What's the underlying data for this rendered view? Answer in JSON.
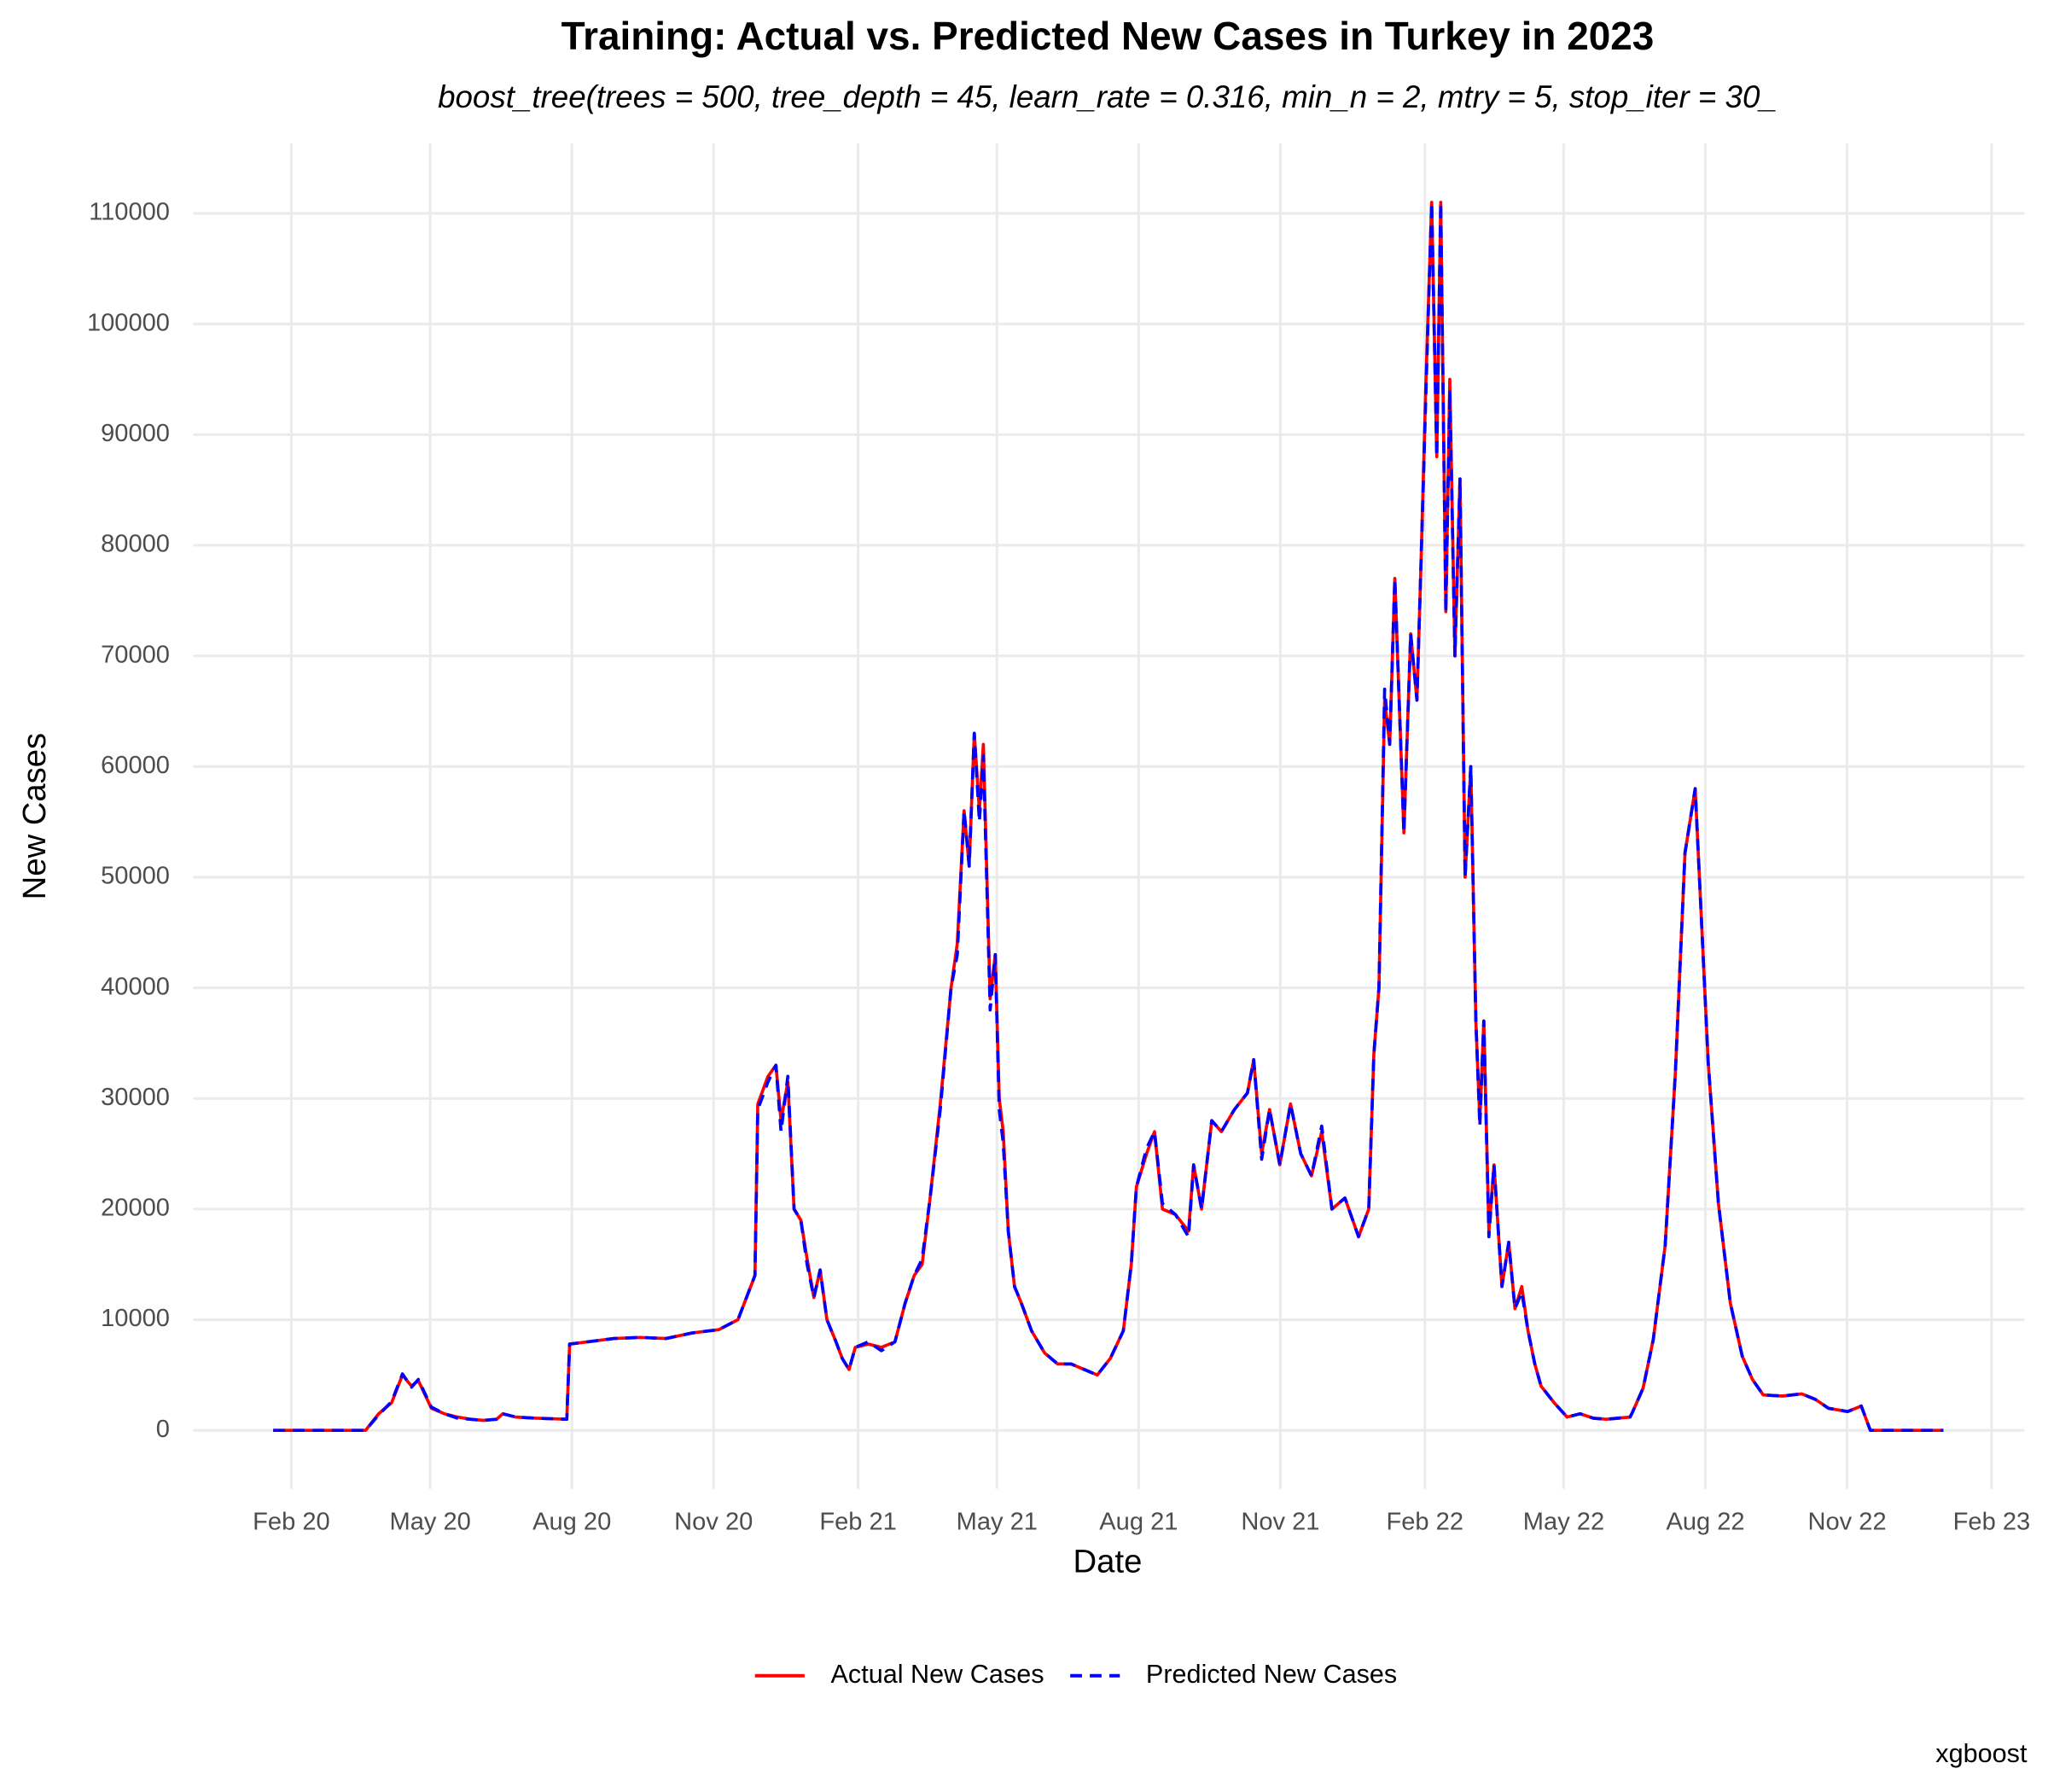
{
  "chart_data": {
    "type": "line",
    "title": "Training: Actual vs. Predicted New Cases in Turkey in 2023",
    "subtitle": "boost_tree(trees = 500, tree_depth = 45, learn_rate = 0.316, min_n = 2, mtry = 5, stop_iter = 30_",
    "x_label": "Date",
    "y_label": "New Cases",
    "caption": "xgboost",
    "legend": "bottom",
    "grid": true,
    "xlim": [
      2019.912,
      2023.143
    ],
    "ylim": [
      -5300,
      116300
    ],
    "xticks": [
      {
        "value": 2020.085,
        "label": "Feb 20"
      },
      {
        "value": 2020.33,
        "label": "May 20"
      },
      {
        "value": 2020.58,
        "label": "Aug 20"
      },
      {
        "value": 2020.83,
        "label": "Nov 20"
      },
      {
        "value": 2021.085,
        "label": "Feb 21"
      },
      {
        "value": 2021.33,
        "label": "May 21"
      },
      {
        "value": 2021.58,
        "label": "Aug 21"
      },
      {
        "value": 2021.83,
        "label": "Nov 21"
      },
      {
        "value": 2022.085,
        "label": "Feb 22"
      },
      {
        "value": 2022.33,
        "label": "May 22"
      },
      {
        "value": 2022.58,
        "label": "Aug 22"
      },
      {
        "value": 2022.83,
        "label": "Nov 22"
      },
      {
        "value": 2023.085,
        "label": "Feb 23"
      }
    ],
    "yticks": [
      0,
      10000,
      20000,
      30000,
      40000,
      50000,
      60000,
      70000,
      80000,
      90000,
      100000,
      110000
    ],
    "x": [
      2020.053,
      2020.216,
      2020.239,
      2020.262,
      2020.281,
      2020.297,
      2020.309,
      2020.332,
      2020.355,
      2020.378,
      2020.401,
      2020.424,
      2020.447,
      2020.458,
      2020.481,
      2020.516,
      2020.571,
      2020.576,
      2020.608,
      2020.654,
      2020.7,
      2020.746,
      2020.792,
      2020.839,
      2020.873,
      2020.903,
      2020.908,
      2020.926,
      2020.94,
      2020.949,
      2020.961,
      2020.972,
      2020.984,
      2020.995,
      2021.007,
      2021.018,
      2021.03,
      2021.046,
      2021.057,
      2021.069,
      2021.08,
      2021.103,
      2021.126,
      2021.15,
      2021.168,
      2021.184,
      2021.198,
      2021.212,
      2021.23,
      2021.249,
      2021.26,
      2021.272,
      2021.281,
      2021.29,
      2021.299,
      2021.306,
      2021.318,
      2021.327,
      2021.334,
      2021.341,
      2021.35,
      2021.361,
      2021.373,
      2021.391,
      2021.414,
      2021.437,
      2021.461,
      2021.484,
      2021.507,
      2021.53,
      2021.553,
      2021.567,
      2021.576,
      2021.594,
      2021.608,
      2021.622,
      2021.645,
      2021.668,
      2021.677,
      2021.691,
      2021.709,
      2021.726,
      2021.749,
      2021.772,
      2021.783,
      2021.797,
      2021.811,
      2021.829,
      2021.848,
      2021.866,
      2021.885,
      2021.903,
      2021.921,
      2021.944,
      2021.968,
      2021.986,
      2021.995,
      2022.004,
      2022.014,
      2022.023,
      2022.032,
      2022.048,
      2022.06,
      2022.071,
      2022.078,
      2022.087,
      2022.097,
      2022.106,
      2022.113,
      2022.122,
      2022.129,
      2022.138,
      2022.147,
      2022.156,
      2022.166,
      2022.175,
      2022.182,
      2022.189,
      2022.198,
      2022.207,
      2022.221,
      2022.233,
      2022.244,
      2022.256,
      2022.267,
      2022.279,
      2022.29,
      2022.313,
      2022.336,
      2022.359,
      2022.382,
      2022.405,
      2022.447,
      2022.451,
      2022.47,
      2022.488,
      2022.509,
      2022.527,
      2022.544,
      2022.562,
      2022.585,
      2022.603,
      2022.624,
      2022.645,
      2022.663,
      2022.682,
      2022.716,
      2022.75,
      2022.774,
      2022.797,
      2022.831,
      2022.855,
      2022.871,
      2023.0
    ],
    "series": [
      {
        "name": "Actual New Cases",
        "color": "#ff0000",
        "linestyle": "solid",
        "values": [
          0,
          0,
          1500,
          2500,
          5000,
          4000,
          4500,
          2000,
          1500,
          1200,
          1000,
          900,
          1000,
          1500,
          1200,
          1100,
          1000,
          7800,
          8000,
          8300,
          8400,
          8300,
          8800,
          9100,
          10000,
          14000,
          29500,
          32000,
          33000,
          28000,
          31500,
          20000,
          19000,
          15500,
          12000,
          14500,
          10000,
          8000,
          6500,
          5500,
          7500,
          7800,
          7500,
          8000,
          11500,
          14000,
          15000,
          21000,
          29500,
          40000,
          44000,
          56000,
          51000,
          63000,
          56000,
          62000,
          39000,
          43000,
          30000,
          27000,
          18000,
          13000,
          11500,
          9000,
          7000,
          6000,
          6000,
          5500,
          5000,
          6500,
          9000,
          15000,
          22000,
          25000,
          27000,
          20000,
          19500,
          18000,
          24000,
          20000,
          28000,
          27000,
          29000,
          30500,
          33500,
          25000,
          29000,
          24000,
          29500,
          25000,
          23000,
          27000,
          20000,
          21000,
          17500,
          20000,
          34000,
          40000,
          66000,
          62000,
          77000,
          54000,
          72000,
          66000,
          78000,
          95000,
          111000,
          88000,
          111000,
          74000,
          95000,
          70000,
          86000,
          50000,
          60000,
          37000,
          28000,
          37000,
          18000,
          24000,
          13000,
          17000,
          11000,
          13000,
          9000,
          6000,
          4000,
          2500,
          1200,
          1500,
          1100,
          1000,
          1200,
          1600,
          3800,
          8200,
          16700,
          32300,
          52200,
          58000,
          33200,
          20500,
          11500,
          6700,
          4600,
          3200,
          3100,
          3300,
          2800,
          2000,
          1700,
          2200,
          0,
          0
        ]
      },
      {
        "name": "Predicted New Cases",
        "color": "#0000ff",
        "linestyle": "dashed",
        "values": [
          0,
          0,
          1400,
          2600,
          5100,
          3900,
          4600,
          2100,
          1500,
          1100,
          1000,
          900,
          1000,
          1500,
          1200,
          1100,
          1000,
          7800,
          8000,
          8300,
          8400,
          8300,
          8800,
          9100,
          10000,
          14000,
          29000,
          31500,
          33000,
          27000,
          32000,
          20000,
          19000,
          15000,
          12000,
          14500,
          10000,
          8000,
          6500,
          5500,
          7500,
          8000,
          7200,
          8000,
          11500,
          14000,
          15500,
          21000,
          29000,
          40000,
          43000,
          56000,
          51000,
          63000,
          55000,
          61000,
          38000,
          43000,
          29000,
          26000,
          18000,
          13000,
          11500,
          9000,
          7000,
          6000,
          6000,
          5500,
          5000,
          6500,
          9000,
          15000,
          22000,
          25500,
          27000,
          20500,
          19500,
          17500,
          24000,
          20000,
          28000,
          27000,
          29000,
          30500,
          33500,
          24500,
          29000,
          24000,
          29500,
          25000,
          23000,
          27500,
          20000,
          21000,
          17500,
          20000,
          34000,
          40000,
          67000,
          62000,
          77000,
          54000,
          72000,
          66000,
          78000,
          94000,
          111000,
          88000,
          111000,
          74000,
          94000,
          70000,
          86000,
          50000,
          60000,
          37000,
          27500,
          37000,
          17500,
          24000,
          13000,
          17000,
          11000,
          12500,
          9000,
          6000,
          4000,
          2500,
          1200,
          1500,
          1100,
          1000,
          1200,
          1600,
          3800,
          8200,
          16700,
          32300,
          52200,
          58000,
          33200,
          20500,
          11500,
          6700,
          4600,
          3200,
          3100,
          3300,
          2800,
          2000,
          1700,
          2200,
          0,
          0
        ]
      }
    ]
  }
}
